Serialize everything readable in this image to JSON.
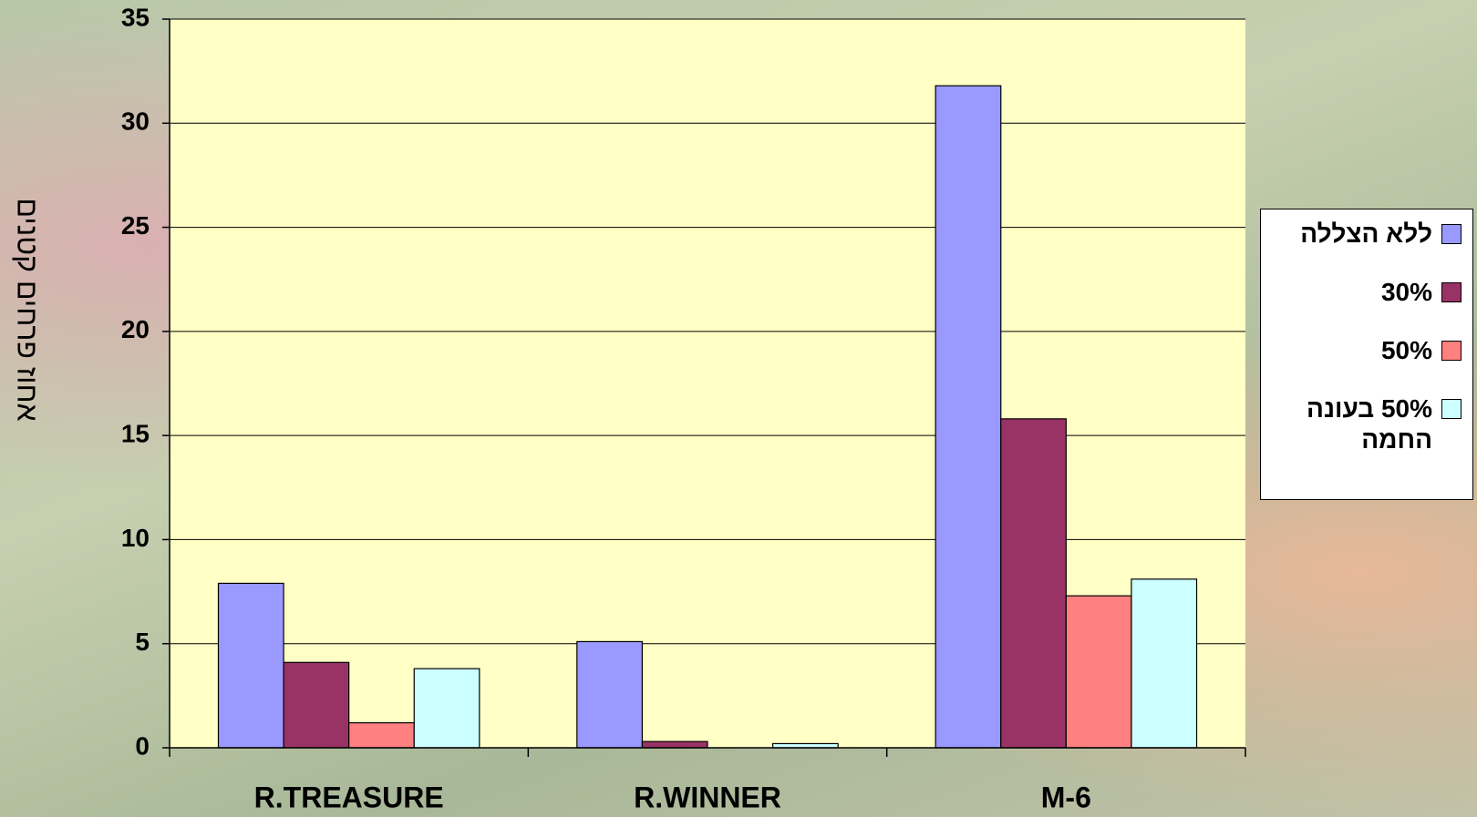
{
  "chart_data": {
    "type": "bar",
    "y_label": "אחוז פרחים קטנים",
    "categories": [
      "R.TREASURE",
      "R.WINNER",
      "M-6"
    ],
    "series": [
      {
        "name": "ללא הצללה",
        "color": "#9999ff",
        "values": [
          7.9,
          5.1,
          31.8
        ]
      },
      {
        "name": "30%",
        "color": "#993366",
        "values": [
          4.1,
          0.3,
          15.8
        ]
      },
      {
        "name": "50%",
        "color": "#ff8080",
        "values": [
          1.2,
          0,
          7.3
        ]
      },
      {
        "name": "50% בעונה החמה",
        "color": "#ccffff",
        "values": [
          3.8,
          0.2,
          8.1
        ]
      }
    ],
    "ylim": [
      0,
      35
    ],
    "yticks": [
      0,
      5,
      10,
      15,
      20,
      25,
      30,
      35
    ],
    "grid": true,
    "legend": "right"
  }
}
